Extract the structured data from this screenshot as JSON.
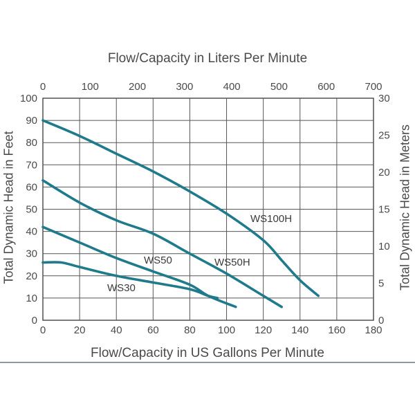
{
  "chart_data": {
    "type": "line",
    "title_top": "Flow/Capacity in Liters Per Minute",
    "xlabel": "Flow/Capacity in US Gallons Per Minute",
    "ylabel": "Total Dynamic Head in Feet",
    "ylabel_right": "Total Dynamic Head in Meters",
    "xlim": [
      0,
      180
    ],
    "ylim": [
      0,
      100
    ],
    "x2lim": [
      0,
      700
    ],
    "y2lim": [
      0,
      30
    ],
    "x_ticks": [
      0,
      20,
      40,
      60,
      80,
      100,
      120,
      140,
      160,
      180
    ],
    "y_ticks": [
      0,
      10,
      20,
      30,
      40,
      50,
      60,
      70,
      80,
      90,
      100
    ],
    "x2_ticks": [
      0,
      100,
      200,
      300,
      400,
      500,
      600,
      700
    ],
    "y2_ticks": [
      0,
      5,
      10,
      15,
      20,
      25,
      30
    ],
    "grid": true,
    "line_color": "#1f7a8c",
    "series": [
      {
        "name": "WS100H",
        "x": [
          0,
          20,
          40,
          60,
          80,
          100,
          120,
          130,
          140,
          150
        ],
        "y": [
          90,
          83,
          75,
          67,
          58,
          48,
          36,
          27,
          18,
          11
        ]
      },
      {
        "name": "WS50H",
        "x": [
          0,
          20,
          40,
          60,
          80,
          100,
          120,
          130
        ],
        "y": [
          63,
          53,
          45,
          39,
          30,
          21,
          11,
          6
        ]
      },
      {
        "name": "WS50",
        "x": [
          0,
          20,
          40,
          60,
          80,
          90,
          105
        ],
        "y": [
          42,
          35,
          28,
          22,
          16,
          11,
          6
        ]
      },
      {
        "name": "WS30",
        "x": [
          0,
          10,
          20,
          40,
          60,
          80,
          90,
          95
        ],
        "y": [
          26,
          26,
          24,
          20,
          17,
          14,
          11,
          10
        ]
      }
    ]
  }
}
